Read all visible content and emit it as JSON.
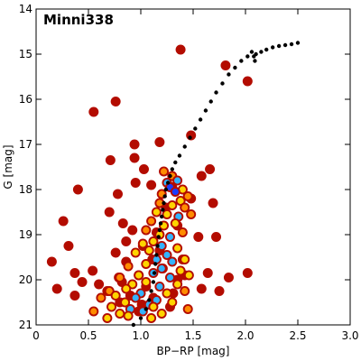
{
  "chart_data": {
    "type": "scatter",
    "title": "Minni338",
    "xlabel": "BP−RP [mag]",
    "ylabel": "G [mag]",
    "xlim": [
      0,
      3
    ],
    "ylim": [
      21,
      14
    ],
    "y_inverted": true,
    "xticks": [
      "0",
      "0.5",
      "1.0",
      "1.5",
      "2.0",
      "2.5",
      "3.0"
    ],
    "yticks": [
      "14",
      "15",
      "16",
      "17",
      "18",
      "19",
      "20",
      "21"
    ],
    "xtick_values": [
      0,
      0.5,
      1.0,
      1.5,
      2.0,
      2.5,
      3.0
    ],
    "ytick_values": [
      14,
      15,
      16,
      17,
      18,
      19,
      20,
      21
    ],
    "grid": false,
    "legend": "none",
    "colors": {
      "field_stars": "#b30c00",
      "isochrone": "#000000",
      "density_low": "#ffd400",
      "density_mid": "#ff8c00",
      "density_high": "#33b3ff",
      "density_peak": "#1a3cff"
    },
    "series": [
      {
        "role": "field-stars",
        "marker": "large-dot",
        "x": [
          1.38,
          0.55,
          0.76,
          1.48,
          1.81,
          2.02,
          0.94,
          1.18,
          0.71,
          0.94,
          1.03,
          1.58,
          1.66,
          0.95,
          1.1,
          1.3,
          0.78,
          0.4,
          1.24,
          1.48,
          0.7,
          0.83,
          1.69,
          0.26,
          0.92,
          1.15,
          1.35,
          1.55,
          0.86,
          1.02,
          1.18,
          0.31,
          0.76,
          1.72,
          0.86,
          1.11,
          1.4,
          0.15,
          0.37,
          0.54,
          0.79,
          0.98,
          1.21,
          1.42,
          1.64,
          1.84,
          2.02,
          0.44,
          0.6,
          0.82,
          1.05,
          1.35,
          1.58,
          1.75,
          0.2,
          0.37,
          0.68,
          0.9,
          1.12,
          1.31,
          0.8,
          1.01,
          1.28,
          0.98
        ],
        "y": [
          14.9,
          16.28,
          16.05,
          16.8,
          15.25,
          15.6,
          17.0,
          16.95,
          17.35,
          17.3,
          17.55,
          17.7,
          17.55,
          17.85,
          17.9,
          17.95,
          18.1,
          18.0,
          18.4,
          18.2,
          18.5,
          18.75,
          18.3,
          18.7,
          18.9,
          18.95,
          18.8,
          19.05,
          19.15,
          19.25,
          19.35,
          19.25,
          19.4,
          19.05,
          19.6,
          19.55,
          19.55,
          19.6,
          19.85,
          19.8,
          19.95,
          19.9,
          19.75,
          19.9,
          19.85,
          19.95,
          19.85,
          20.05,
          20.1,
          20.05,
          20.15,
          20.0,
          20.2,
          20.25,
          20.2,
          20.35,
          20.25,
          20.35,
          20.4,
          20.3,
          20.5,
          20.55,
          20.6,
          20.7
        ]
      },
      {
        "role": "cluster-members",
        "marker": "large-dot-density-colored",
        "x": [
          1.22,
          1.3,
          1.25,
          1.35,
          1.28,
          1.4,
          1.33,
          1.2,
          1.45,
          1.38,
          1.18,
          1.3,
          1.42,
          1.15,
          1.25,
          1.36,
          1.48,
          1.1,
          1.22,
          1.33,
          1.05,
          1.18,
          1.4,
          1.28,
          1.12,
          1.02,
          1.2,
          1.35,
          1.08,
          1.25,
          0.95,
          1.15,
          1.3,
          1.42,
          1.05,
          0.88,
          1.2,
          1.38,
          1.12,
          0.98,
          0.8,
          1.28,
          1.46,
          1.05,
          0.92,
          1.18,
          1.35,
          0.86,
          0.7,
          1.0,
          1.25,
          1.42,
          0.76,
          0.95,
          1.15,
          0.62,
          0.85,
          1.08,
          1.3,
          0.72,
          0.9,
          1.12,
          0.55,
          0.8,
          1.02,
          1.2,
          1.45,
          0.68,
          0.88,
          1.1
        ],
        "y": [
          17.6,
          17.7,
          17.85,
          17.8,
          17.95,
          18.0,
          18.05,
          18.1,
          18.15,
          18.25,
          18.3,
          18.35,
          18.4,
          18.5,
          18.55,
          18.6,
          18.55,
          18.7,
          18.8,
          18.75,
          18.9,
          19.0,
          18.95,
          19.05,
          19.15,
          19.2,
          19.25,
          19.3,
          19.35,
          19.45,
          19.4,
          19.55,
          19.6,
          19.55,
          19.65,
          19.7,
          19.75,
          19.8,
          19.85,
          19.9,
          19.95,
          19.95,
          19.9,
          20.05,
          20.1,
          20.15,
          20.1,
          20.2,
          20.25,
          20.3,
          20.3,
          20.25,
          20.35,
          20.4,
          20.45,
          20.4,
          20.5,
          20.55,
          20.5,
          20.6,
          20.65,
          20.6,
          20.7,
          20.75,
          20.7,
          20.75,
          20.65,
          20.85,
          20.8,
          20.85
        ],
        "density": [
          0.3,
          0.4,
          0.8,
          0.9,
          1.0,
          0.6,
          0.95,
          0.5,
          0.4,
          0.6,
          0.5,
          0.7,
          0.5,
          0.6,
          0.75,
          0.8,
          0.4,
          0.5,
          0.7,
          0.65,
          0.5,
          0.7,
          0.55,
          0.8,
          0.75,
          0.6,
          0.85,
          0.7,
          0.7,
          0.9,
          0.6,
          0.8,
          0.85,
          0.6,
          0.7,
          0.5,
          0.85,
          0.7,
          0.8,
          0.75,
          0.5,
          0.85,
          0.6,
          0.75,
          0.7,
          0.8,
          0.65,
          0.6,
          0.5,
          0.8,
          0.75,
          0.55,
          0.6,
          0.85,
          0.8,
          0.5,
          0.75,
          0.85,
          0.7,
          0.6,
          0.8,
          0.75,
          0.45,
          0.7,
          0.8,
          0.7,
          0.5,
          0.6,
          0.75,
          0.7
        ]
      },
      {
        "role": "isochrone",
        "marker": "small-dot-curve",
        "x": [
          0.93,
          1.0,
          1.05,
          1.08,
          1.1,
          1.12,
          1.13,
          1.14,
          1.15,
          1.16,
          1.17,
          1.18,
          1.19,
          1.2,
          1.21,
          1.22,
          1.23,
          1.24,
          1.26,
          1.28,
          1.3,
          1.33,
          1.37,
          1.42,
          1.47,
          1.52,
          1.57,
          1.62,
          1.67,
          1.72,
          1.78,
          1.84,
          1.9,
          1.96,
          2.02,
          2.06,
          2.08,
          2.09,
          2.1,
          2.15,
          2.2,
          2.26,
          2.32,
          2.38,
          2.44,
          2.5
        ],
        "y": [
          21.0,
          20.85,
          20.65,
          20.45,
          20.25,
          20.05,
          19.85,
          19.65,
          19.45,
          19.25,
          19.05,
          18.9,
          18.75,
          18.6,
          18.45,
          18.3,
          18.15,
          18.0,
          17.85,
          17.7,
          17.55,
          17.4,
          17.25,
          17.05,
          16.85,
          16.65,
          16.45,
          16.25,
          16.05,
          15.85,
          15.65,
          15.45,
          15.3,
          15.15,
          15.05,
          14.95,
          15.05,
          15.15,
          15.0,
          14.95,
          14.9,
          14.85,
          14.82,
          14.8,
          14.78,
          14.75
        ]
      }
    ]
  }
}
